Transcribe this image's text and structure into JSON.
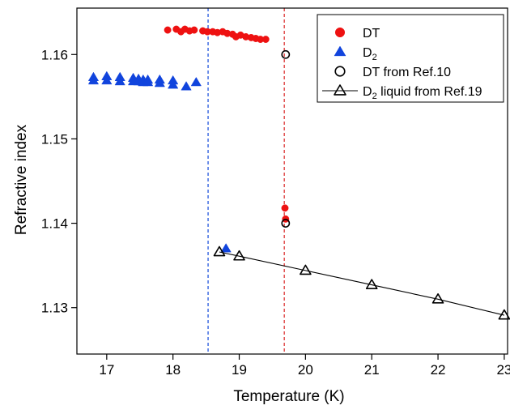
{
  "chart_data": {
    "type": "scatter",
    "xlabel": "Temperature (K)",
    "ylabel": "Refractive index",
    "xlim": [
      16.55,
      23.05
    ],
    "ylim": [
      1.1245,
      1.1655
    ],
    "xticks": [
      17,
      18,
      19,
      20,
      21,
      22,
      23
    ],
    "yticks": [
      1.13,
      1.14,
      1.15,
      1.16
    ],
    "xtick_labels": [
      "17",
      "18",
      "19",
      "20",
      "21",
      "22",
      "23"
    ],
    "ytick_labels": [
      "1.13",
      "1.14",
      "1.15",
      "1.16"
    ],
    "grid": false,
    "legend_position": "top-right",
    "vlines": [
      {
        "x": 18.53,
        "color": "#2255dd"
      },
      {
        "x": 19.68,
        "color": "#dd3333"
      }
    ],
    "series": [
      {
        "name": "DT",
        "legend_main": "DT",
        "legend_sub": "",
        "legend_tail": "",
        "marker": "circle",
        "filled": true,
        "color": "#ee1111",
        "line": false,
        "points": [
          [
            17.92,
            1.1629
          ],
          [
            18.05,
            1.163
          ],
          [
            18.12,
            1.1627
          ],
          [
            18.18,
            1.163
          ],
          [
            18.25,
            1.1628
          ],
          [
            18.32,
            1.1629
          ],
          [
            18.45,
            1.1628
          ],
          [
            18.52,
            1.1627
          ],
          [
            18.6,
            1.1627
          ],
          [
            18.67,
            1.1626
          ],
          [
            18.75,
            1.1627
          ],
          [
            18.82,
            1.1625
          ],
          [
            18.9,
            1.1624
          ],
          [
            18.95,
            1.1621
          ],
          [
            19.02,
            1.1623
          ],
          [
            19.1,
            1.1621
          ],
          [
            19.18,
            1.162
          ],
          [
            19.25,
            1.1619
          ],
          [
            19.32,
            1.1618
          ],
          [
            19.4,
            1.1618
          ],
          [
            19.69,
            1.1418
          ],
          [
            19.7,
            1.1405
          ]
        ]
      },
      {
        "name": "D2",
        "legend_main": "D",
        "legend_sub": "2",
        "legend_tail": "",
        "marker": "triangle",
        "filled": true,
        "color": "#1144dd",
        "line": false,
        "points": [
          [
            16.8,
            1.1573
          ],
          [
            16.8,
            1.1569
          ],
          [
            17.0,
            1.1574
          ],
          [
            17.0,
            1.1569
          ],
          [
            17.2,
            1.1573
          ],
          [
            17.2,
            1.1568
          ],
          [
            17.4,
            1.1572
          ],
          [
            17.4,
            1.1568
          ],
          [
            17.48,
            1.1571
          ],
          [
            17.48,
            1.1568
          ],
          [
            17.55,
            1.157
          ],
          [
            17.55,
            1.1567
          ],
          [
            17.62,
            1.157
          ],
          [
            17.62,
            1.1567
          ],
          [
            17.8,
            1.157
          ],
          [
            17.8,
            1.1566
          ],
          [
            18.0,
            1.1569
          ],
          [
            18.0,
            1.1564
          ],
          [
            18.2,
            1.1562
          ],
          [
            18.35,
            1.1567
          ],
          [
            18.8,
            1.137
          ]
        ]
      },
      {
        "name": "DT from Ref.10",
        "legend_main": "DT from Ref.10",
        "legend_sub": "",
        "legend_tail": "",
        "marker": "circle",
        "filled": false,
        "color": "#000000",
        "line": false,
        "points": [
          [
            19.7,
            1.16
          ],
          [
            19.7,
            1.14
          ]
        ]
      },
      {
        "name": "D2 liquid from Ref.19",
        "legend_main": "D",
        "legend_sub": "2",
        "legend_tail": " liquid from Ref.19",
        "marker": "triangle",
        "filled": false,
        "color": "#000000",
        "line": true,
        "points": [
          [
            18.7,
            1.1366
          ],
          [
            19.0,
            1.1361
          ],
          [
            20.0,
            1.1344
          ],
          [
            21.0,
            1.1327
          ],
          [
            22.0,
            1.131
          ],
          [
            23.0,
            1.1291
          ]
        ]
      }
    ]
  }
}
